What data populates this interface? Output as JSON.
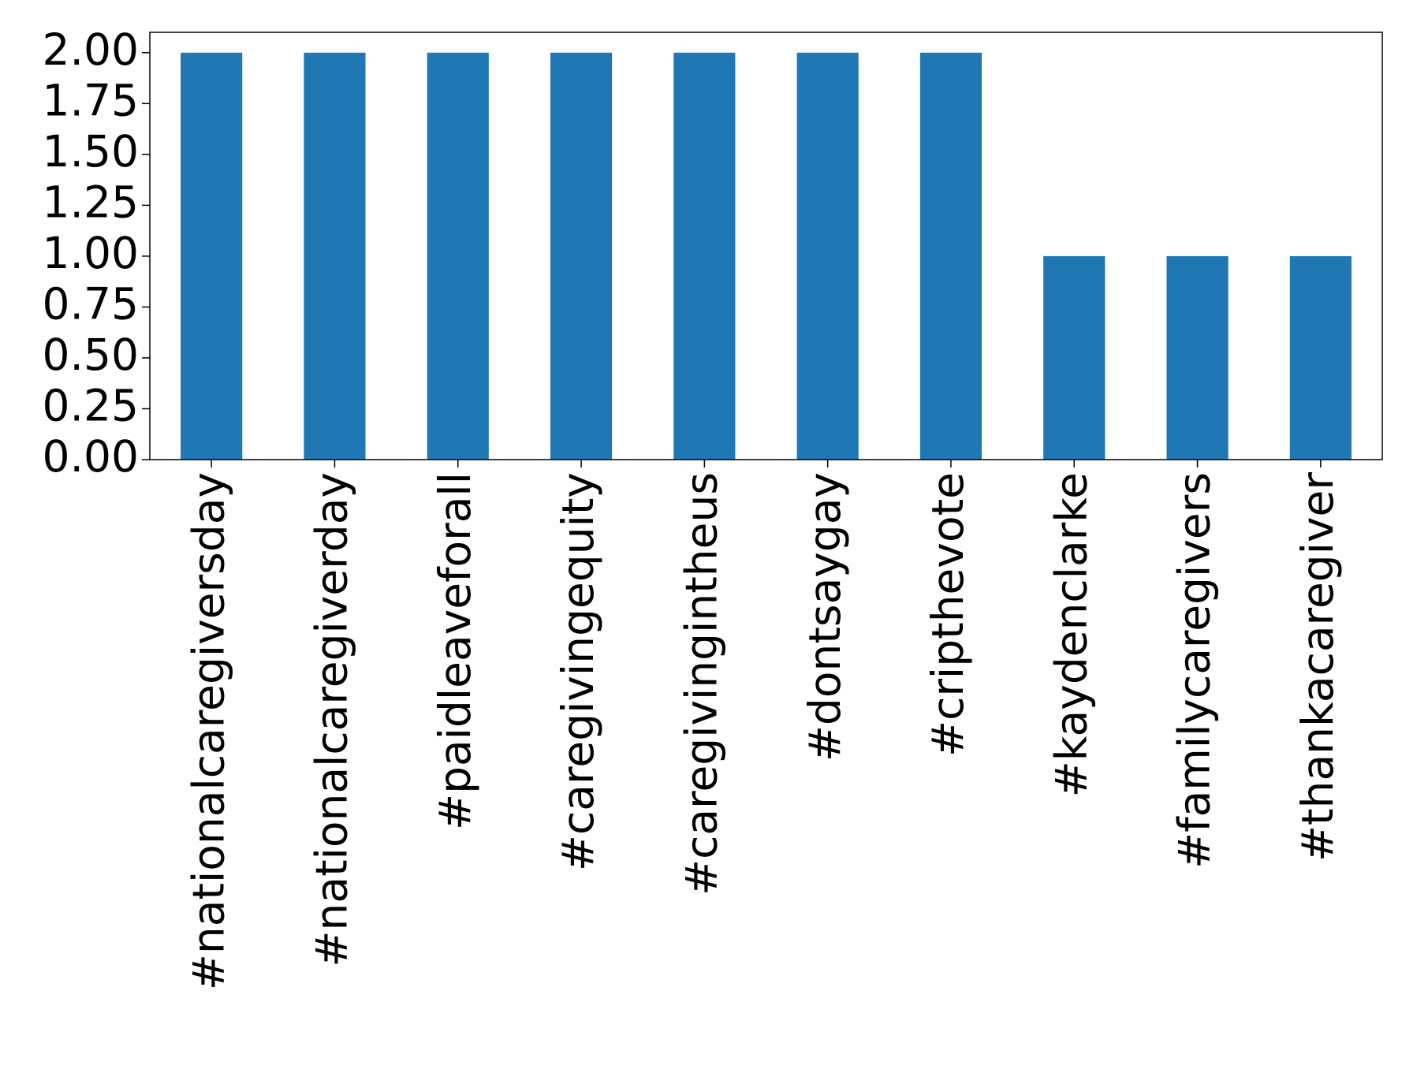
{
  "chart_data": {
    "type": "bar",
    "categories": [
      "#nationalcaregiversday",
      "#nationalcaregiverday",
      "#paidleaveforall",
      "#caregivingequity",
      "#caregivingintheus",
      "#dontsaygay",
      "#cripthevote",
      "#kaydenclarke",
      "#familycaregivers",
      "#thankacaregiver"
    ],
    "values": [
      2,
      2,
      2,
      2,
      2,
      2,
      2,
      1,
      1,
      1
    ],
    "color": "#1f77b4",
    "ylim": [
      0,
      2.1
    ],
    "yticks": [
      {
        "value": 0,
        "label": "0.00"
      },
      {
        "value": 0.25,
        "label": "0.25"
      },
      {
        "value": 0.5,
        "label": "0.50"
      },
      {
        "value": 0.75,
        "label": "0.75"
      },
      {
        "value": 1,
        "label": "1.00"
      },
      {
        "value": 1.25,
        "label": "1.25"
      },
      {
        "value": 1.5,
        "label": "1.50"
      },
      {
        "value": 1.75,
        "label": "1.75"
      },
      {
        "value": 2,
        "label": "2.00"
      }
    ],
    "grid": false
  }
}
